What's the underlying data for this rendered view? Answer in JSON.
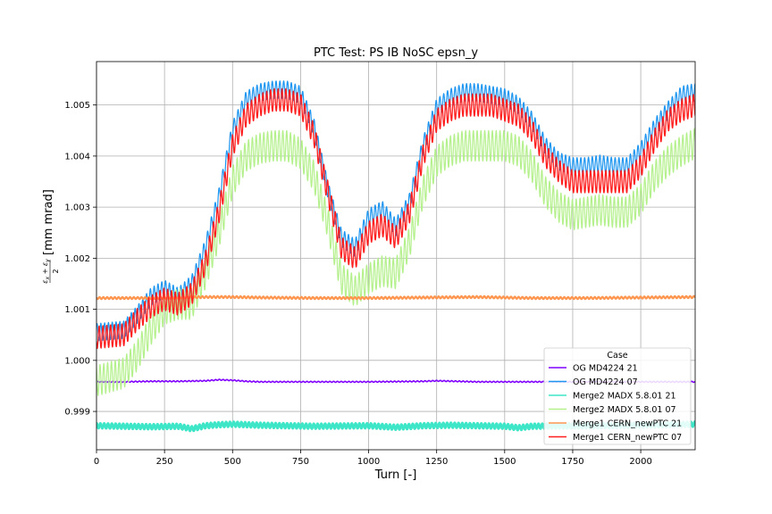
{
  "chart_data": {
    "type": "line",
    "title": "PTC Test: PS IB NoSC epsn_y",
    "xlabel": "Turn [-]",
    "ylabel": "[mm mrad]",
    "ylabel_fraction": "εx + εy / 2",
    "xlim": [
      0,
      2200
    ],
    "ylim": [
      0.99825,
      1.00585
    ],
    "xticks": [
      0,
      250,
      500,
      750,
      1000,
      1250,
      1500,
      1750,
      2000
    ],
    "xtick_labels": [
      "0",
      "250",
      "500",
      "750",
      "1000",
      "1250",
      "1500",
      "1750",
      "2000"
    ],
    "yticks": [
      0.999,
      1.0,
      1.001,
      1.002,
      1.003,
      1.004,
      1.005
    ],
    "ytick_labels": [
      "0.999",
      "1.000",
      "1.001",
      "1.002",
      "1.003",
      "1.004",
      "1.005"
    ],
    "grid": true,
    "legend": {
      "title": "Case",
      "position": "bottom-right"
    },
    "series": [
      {
        "name": "OG MD4224 21",
        "color": "#8000ff",
        "width": 1.6,
        "x": [
          0,
          100,
          200,
          300,
          400,
          450,
          500,
          550,
          600,
          800,
          1000,
          1200,
          1250,
          1400,
          1600,
          1800,
          2000,
          2200
        ],
        "y": [
          0.99958,
          0.99958,
          0.99959,
          0.99959,
          0.9996,
          0.99962,
          0.99961,
          0.99959,
          0.99958,
          0.99958,
          0.99958,
          0.99959,
          0.9996,
          0.99958,
          0.99958,
          0.99958,
          0.99958,
          0.99958
        ],
        "osc_amp": 1e-05,
        "osc_period": 14
      },
      {
        "name": "OG MD4224 07",
        "color": "#1e96f0",
        "width": 1.2,
        "x": [
          0,
          100,
          150,
          200,
          250,
          300,
          350,
          400,
          450,
          500,
          550,
          600,
          650,
          700,
          750,
          800,
          850,
          900,
          950,
          1000,
          1050,
          1100,
          1150,
          1200,
          1250,
          1300,
          1350,
          1400,
          1450,
          1500,
          1550,
          1600,
          1650,
          1700,
          1750,
          1800,
          1850,
          1900,
          1950,
          2000,
          2050,
          2100,
          2150,
          2200
        ],
        "y": [
          1.00055,
          1.0006,
          1.0009,
          1.00125,
          1.0014,
          1.00125,
          1.0015,
          1.0022,
          1.0032,
          1.0045,
          1.0051,
          1.00525,
          1.0053,
          1.0053,
          1.0052,
          1.00455,
          1.00335,
          1.0024,
          1.0022,
          1.0028,
          1.00295,
          1.0026,
          1.0031,
          1.0042,
          1.00495,
          1.00515,
          1.00525,
          1.00525,
          1.0052,
          1.00515,
          1.005,
          1.0047,
          1.0042,
          1.0039,
          1.0038,
          1.0038,
          1.00385,
          1.0038,
          1.0038,
          1.0041,
          1.00455,
          1.0049,
          1.0052,
          1.00525
        ],
        "osc_amp": 0.00017,
        "osc_period": 14
      },
      {
        "name": "Merge2 MADX 5.8.01 21",
        "color": "#3ee6c8",
        "width": 2.8,
        "x": [
          0,
          100,
          200,
          300,
          350,
          400,
          450,
          500,
          600,
          800,
          1000,
          1100,
          1200,
          1300,
          1400,
          1500,
          1550,
          1600,
          1800,
          2000,
          2200
        ],
        "y": [
          0.99872,
          0.99871,
          0.9987,
          0.99871,
          0.99866,
          0.99872,
          0.99874,
          0.99875,
          0.99873,
          0.99871,
          0.99872,
          0.99869,
          0.99872,
          0.99873,
          0.99872,
          0.99871,
          0.99868,
          0.99871,
          0.99872,
          0.99873,
          0.99875
        ],
        "osc_amp": 5e-05,
        "osc_period": 14
      },
      {
        "name": "Merge2 MADX 5.8.01 07",
        "color": "#b4f08c",
        "width": 1.2,
        "x": [
          0,
          100,
          150,
          200,
          250,
          300,
          350,
          400,
          450,
          500,
          550,
          600,
          650,
          700,
          750,
          800,
          850,
          900,
          950,
          1000,
          1050,
          1100,
          1150,
          1200,
          1250,
          1300,
          1350,
          1400,
          1450,
          1500,
          1550,
          1600,
          1650,
          1700,
          1750,
          1800,
          1850,
          1900,
          1950,
          2000,
          2050,
          2100,
          2150,
          2200
        ],
        "y": [
          0.9996,
          0.99975,
          1.0001,
          1.0006,
          1.001,
          1.0011,
          1.0011,
          1.0017,
          1.0025,
          1.0035,
          1.004,
          1.00415,
          1.0042,
          1.0042,
          1.00405,
          1.0036,
          1.0027,
          1.0016,
          1.00135,
          1.0016,
          1.00175,
          1.0017,
          1.0023,
          1.0033,
          1.0039,
          1.0041,
          1.0042,
          1.0042,
          1.0042,
          1.0042,
          1.0041,
          1.0038,
          1.0033,
          1.003,
          1.00285,
          1.0029,
          1.00295,
          1.0029,
          1.0029,
          1.00315,
          1.0036,
          1.0039,
          1.0041,
          1.00425
        ],
        "osc_amp": 0.0003,
        "osc_period": 14
      },
      {
        "name": "Merge1 CERN_newPTC 21",
        "color": "#ff9650",
        "width": 2.2,
        "x": [
          0,
          200,
          400,
          500,
          600,
          800,
          1000,
          1200,
          1400,
          1600,
          1800,
          2000,
          2200
        ],
        "y": [
          1.00122,
          1.00122,
          1.00124,
          1.00124,
          1.00123,
          1.00122,
          1.00122,
          1.00123,
          1.00124,
          1.00122,
          1.00122,
          1.00123,
          1.00124
        ],
        "osc_amp": 2e-05,
        "osc_period": 14
      },
      {
        "name": "Merge1 CERN_newPTC 07",
        "color": "#ff1e1e",
        "width": 1.3,
        "x": [
          0,
          100,
          150,
          200,
          250,
          300,
          350,
          400,
          450,
          500,
          550,
          600,
          650,
          700,
          750,
          800,
          850,
          900,
          950,
          1000,
          1050,
          1100,
          1150,
          1200,
          1250,
          1300,
          1350,
          1400,
          1450,
          1500,
          1550,
          1600,
          1650,
          1700,
          1750,
          1800,
          1850,
          1900,
          1950,
          2000,
          2050,
          2100,
          2150,
          2200
        ],
        "y": [
          1.00045,
          1.0005,
          1.0008,
          1.00105,
          1.0012,
          1.0011,
          1.0013,
          1.0019,
          1.0029,
          1.0042,
          1.0048,
          1.005,
          1.0051,
          1.0051,
          1.005,
          1.0044,
          1.0033,
          1.0022,
          1.002,
          1.0025,
          1.00265,
          1.0024,
          1.0029,
          1.004,
          1.0047,
          1.0049,
          1.005,
          1.005,
          1.005,
          1.0049,
          1.0048,
          1.0045,
          1.004,
          1.0037,
          1.0035,
          1.0035,
          1.0035,
          1.0035,
          1.0035,
          1.0038,
          1.0043,
          1.0047,
          1.0049,
          1.005
        ],
        "osc_amp": 0.00022,
        "osc_period": 14
      }
    ]
  }
}
